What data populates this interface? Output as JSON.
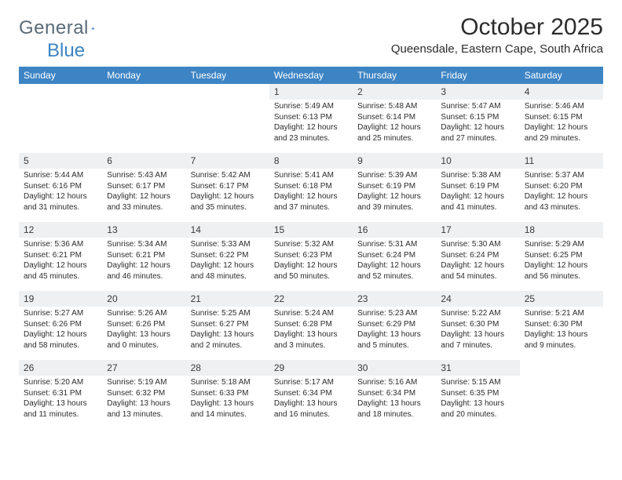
{
  "logo": {
    "word1": "General",
    "word2": "Blue"
  },
  "title": "October 2025",
  "location": "Queensdale, Eastern Cape, South Africa",
  "colors": {
    "header_bg": "#3d84c4",
    "header_text": "#ffffff",
    "daynum_bg": "#eef0f2",
    "text": "#2c2c2c",
    "logo_gray": "#5a6b78",
    "logo_blue": "#3d84c4"
  },
  "typography": {
    "title_fontsize": 30,
    "location_fontsize": 15,
    "dayheader_fontsize": 12,
    "daynum_fontsize": 12,
    "body_fontsize": 10
  },
  "day_headers": [
    "Sunday",
    "Monday",
    "Tuesday",
    "Wednesday",
    "Thursday",
    "Friday",
    "Saturday"
  ],
  "weeks": [
    [
      {
        "n": "",
        "sunrise": "",
        "sunset": "",
        "daylight": "",
        "empty": true
      },
      {
        "n": "",
        "sunrise": "",
        "sunset": "",
        "daylight": "",
        "empty": true
      },
      {
        "n": "",
        "sunrise": "",
        "sunset": "",
        "daylight": "",
        "empty": true
      },
      {
        "n": "1",
        "sunrise": "Sunrise: 5:49 AM",
        "sunset": "Sunset: 6:13 PM",
        "daylight": "Daylight: 12 hours and 23 minutes."
      },
      {
        "n": "2",
        "sunrise": "Sunrise: 5:48 AM",
        "sunset": "Sunset: 6:14 PM",
        "daylight": "Daylight: 12 hours and 25 minutes."
      },
      {
        "n": "3",
        "sunrise": "Sunrise: 5:47 AM",
        "sunset": "Sunset: 6:15 PM",
        "daylight": "Daylight: 12 hours and 27 minutes."
      },
      {
        "n": "4",
        "sunrise": "Sunrise: 5:46 AM",
        "sunset": "Sunset: 6:15 PM",
        "daylight": "Daylight: 12 hours and 29 minutes."
      }
    ],
    [
      {
        "n": "5",
        "sunrise": "Sunrise: 5:44 AM",
        "sunset": "Sunset: 6:16 PM",
        "daylight": "Daylight: 12 hours and 31 minutes."
      },
      {
        "n": "6",
        "sunrise": "Sunrise: 5:43 AM",
        "sunset": "Sunset: 6:17 PM",
        "daylight": "Daylight: 12 hours and 33 minutes."
      },
      {
        "n": "7",
        "sunrise": "Sunrise: 5:42 AM",
        "sunset": "Sunset: 6:17 PM",
        "daylight": "Daylight: 12 hours and 35 minutes."
      },
      {
        "n": "8",
        "sunrise": "Sunrise: 5:41 AM",
        "sunset": "Sunset: 6:18 PM",
        "daylight": "Daylight: 12 hours and 37 minutes."
      },
      {
        "n": "9",
        "sunrise": "Sunrise: 5:39 AM",
        "sunset": "Sunset: 6:19 PM",
        "daylight": "Daylight: 12 hours and 39 minutes."
      },
      {
        "n": "10",
        "sunrise": "Sunrise: 5:38 AM",
        "sunset": "Sunset: 6:19 PM",
        "daylight": "Daylight: 12 hours and 41 minutes."
      },
      {
        "n": "11",
        "sunrise": "Sunrise: 5:37 AM",
        "sunset": "Sunset: 6:20 PM",
        "daylight": "Daylight: 12 hours and 43 minutes."
      }
    ],
    [
      {
        "n": "12",
        "sunrise": "Sunrise: 5:36 AM",
        "sunset": "Sunset: 6:21 PM",
        "daylight": "Daylight: 12 hours and 45 minutes."
      },
      {
        "n": "13",
        "sunrise": "Sunrise: 5:34 AM",
        "sunset": "Sunset: 6:21 PM",
        "daylight": "Daylight: 12 hours and 46 minutes."
      },
      {
        "n": "14",
        "sunrise": "Sunrise: 5:33 AM",
        "sunset": "Sunset: 6:22 PM",
        "daylight": "Daylight: 12 hours and 48 minutes."
      },
      {
        "n": "15",
        "sunrise": "Sunrise: 5:32 AM",
        "sunset": "Sunset: 6:23 PM",
        "daylight": "Daylight: 12 hours and 50 minutes."
      },
      {
        "n": "16",
        "sunrise": "Sunrise: 5:31 AM",
        "sunset": "Sunset: 6:24 PM",
        "daylight": "Daylight: 12 hours and 52 minutes."
      },
      {
        "n": "17",
        "sunrise": "Sunrise: 5:30 AM",
        "sunset": "Sunset: 6:24 PM",
        "daylight": "Daylight: 12 hours and 54 minutes."
      },
      {
        "n": "18",
        "sunrise": "Sunrise: 5:29 AM",
        "sunset": "Sunset: 6:25 PM",
        "daylight": "Daylight: 12 hours and 56 minutes."
      }
    ],
    [
      {
        "n": "19",
        "sunrise": "Sunrise: 5:27 AM",
        "sunset": "Sunset: 6:26 PM",
        "daylight": "Daylight: 12 hours and 58 minutes."
      },
      {
        "n": "20",
        "sunrise": "Sunrise: 5:26 AM",
        "sunset": "Sunset: 6:26 PM",
        "daylight": "Daylight: 13 hours and 0 minutes."
      },
      {
        "n": "21",
        "sunrise": "Sunrise: 5:25 AM",
        "sunset": "Sunset: 6:27 PM",
        "daylight": "Daylight: 13 hours and 2 minutes."
      },
      {
        "n": "22",
        "sunrise": "Sunrise: 5:24 AM",
        "sunset": "Sunset: 6:28 PM",
        "daylight": "Daylight: 13 hours and 3 minutes."
      },
      {
        "n": "23",
        "sunrise": "Sunrise: 5:23 AM",
        "sunset": "Sunset: 6:29 PM",
        "daylight": "Daylight: 13 hours and 5 minutes."
      },
      {
        "n": "24",
        "sunrise": "Sunrise: 5:22 AM",
        "sunset": "Sunset: 6:30 PM",
        "daylight": "Daylight: 13 hours and 7 minutes."
      },
      {
        "n": "25",
        "sunrise": "Sunrise: 5:21 AM",
        "sunset": "Sunset: 6:30 PM",
        "daylight": "Daylight: 13 hours and 9 minutes."
      }
    ],
    [
      {
        "n": "26",
        "sunrise": "Sunrise: 5:20 AM",
        "sunset": "Sunset: 6:31 PM",
        "daylight": "Daylight: 13 hours and 11 minutes."
      },
      {
        "n": "27",
        "sunrise": "Sunrise: 5:19 AM",
        "sunset": "Sunset: 6:32 PM",
        "daylight": "Daylight: 13 hours and 13 minutes."
      },
      {
        "n": "28",
        "sunrise": "Sunrise: 5:18 AM",
        "sunset": "Sunset: 6:33 PM",
        "daylight": "Daylight: 13 hours and 14 minutes."
      },
      {
        "n": "29",
        "sunrise": "Sunrise: 5:17 AM",
        "sunset": "Sunset: 6:34 PM",
        "daylight": "Daylight: 13 hours and 16 minutes."
      },
      {
        "n": "30",
        "sunrise": "Sunrise: 5:16 AM",
        "sunset": "Sunset: 6:34 PM",
        "daylight": "Daylight: 13 hours and 18 minutes."
      },
      {
        "n": "31",
        "sunrise": "Sunrise: 5:15 AM",
        "sunset": "Sunset: 6:35 PM",
        "daylight": "Daylight: 13 hours and 20 minutes."
      },
      {
        "n": "",
        "sunrise": "",
        "sunset": "",
        "daylight": "",
        "empty": true
      }
    ]
  ]
}
